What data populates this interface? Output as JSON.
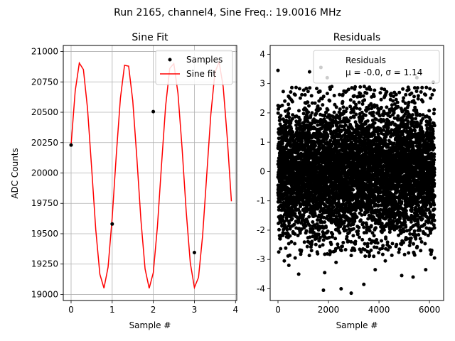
{
  "suptitle": "Run 2165, channel4, Sine Freq.: 19.0016 MHz",
  "chart_data": [
    {
      "type": "line",
      "title": "Sine Fit",
      "xlabel": "Sample #",
      "ylabel": "ADC Counts",
      "xlim": [
        -0.19,
        4.03
      ],
      "ylim": [
        18950,
        21050
      ],
      "xticks": [
        0,
        1,
        2,
        3,
        4
      ],
      "yticks": [
        19000,
        19250,
        19500,
        19750,
        20000,
        20250,
        20500,
        20750,
        21000
      ],
      "grid": true,
      "legend": {
        "position": "top-right",
        "entries": [
          "Samples",
          "Sine fit"
        ]
      },
      "series": [
        {
          "name": "Samples",
          "kind": "scatter",
          "color": "#000000",
          "points": [
            [
              0,
              20230
            ],
            [
              1,
              19580
            ],
            [
              2,
              20505
            ],
            [
              3,
              19345
            ]
          ]
        },
        {
          "name": "Sine fit",
          "kind": "line",
          "color": "#ff0000",
          "model": {
            "offset": 19985,
            "amplitude": 935,
            "cycles_per_sample": 0.8962,
            "phase_rad": 0.2657
          },
          "x_range": [
            0,
            3.9
          ],
          "n_points": 40
        }
      ]
    },
    {
      "type": "scatter",
      "title": "Residuals",
      "xlabel": "Sample #",
      "ylabel": "",
      "xlim": [
        -310,
        6560
      ],
      "ylim": [
        -4.4,
        4.3
      ],
      "xticks": [
        0,
        2000,
        4000,
        6000
      ],
      "yticks": [
        -4,
        -3,
        -2,
        -1,
        0,
        1,
        2,
        3,
        4
      ],
      "grid": false,
      "legend": {
        "position": "top-right",
        "title": "Residuals",
        "stats": "μ = -0.0, σ = 1.14"
      },
      "residual_stats": {
        "mean": -0.0,
        "sigma": 1.14,
        "n_samples": 6250,
        "x_max": 6200
      },
      "outliers": [
        [
          0,
          3.45
        ],
        [
          1700,
          3.55
        ],
        [
          1250,
          3.4
        ],
        [
          250,
          -3.05
        ],
        [
          430,
          -3.2
        ],
        [
          680,
          -2.95
        ],
        [
          1800,
          -4.05
        ],
        [
          1850,
          -3.45
        ],
        [
          2500,
          -4.0
        ],
        [
          2900,
          -4.15
        ],
        [
          3400,
          -3.85
        ],
        [
          3850,
          -3.35
        ],
        [
          4250,
          -3.05
        ],
        [
          4900,
          -3.55
        ],
        [
          5350,
          -3.6
        ],
        [
          5850,
          -3.35
        ],
        [
          6200,
          -2.95
        ],
        [
          6150,
          3.05
        ],
        [
          2300,
          -3.1
        ],
        [
          1950,
          3.2
        ],
        [
          5500,
          3.2
        ],
        [
          820,
          -3.5
        ]
      ],
      "color": "#000000"
    }
  ]
}
